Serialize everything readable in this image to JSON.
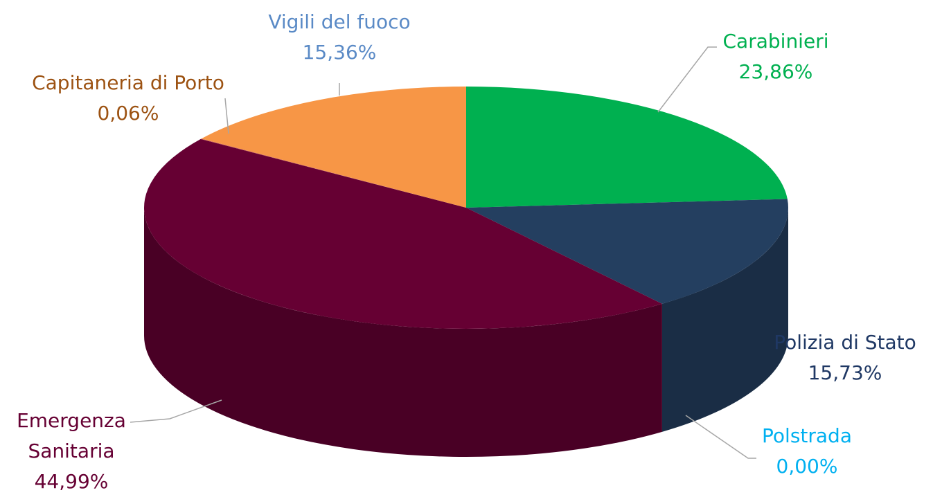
{
  "chart_data": {
    "type": "pie3d",
    "categories": [
      "Carabinieri",
      "Polizia di Stato",
      "Polstrada",
      "Emergenza Sanitaria",
      "Capitaneria di Porto",
      "Vigili del fuoco"
    ],
    "values": [
      23.86,
      15.73,
      0.0,
      44.99,
      0.06,
      15.36
    ],
    "value_labels": [
      "23,86%",
      "15,73%",
      "0,00%",
      "44,99%",
      "0,06%",
      "15,36%"
    ],
    "colors": [
      "#00b050",
      "#243f60",
      "#00b0f0",
      "#660033",
      "#c0504d",
      "#f79646"
    ],
    "label_colors": [
      "#00b050",
      "#1f3864",
      "#00b0f0",
      "#660033",
      "#9c5212",
      "#5a8ac6"
    ]
  }
}
